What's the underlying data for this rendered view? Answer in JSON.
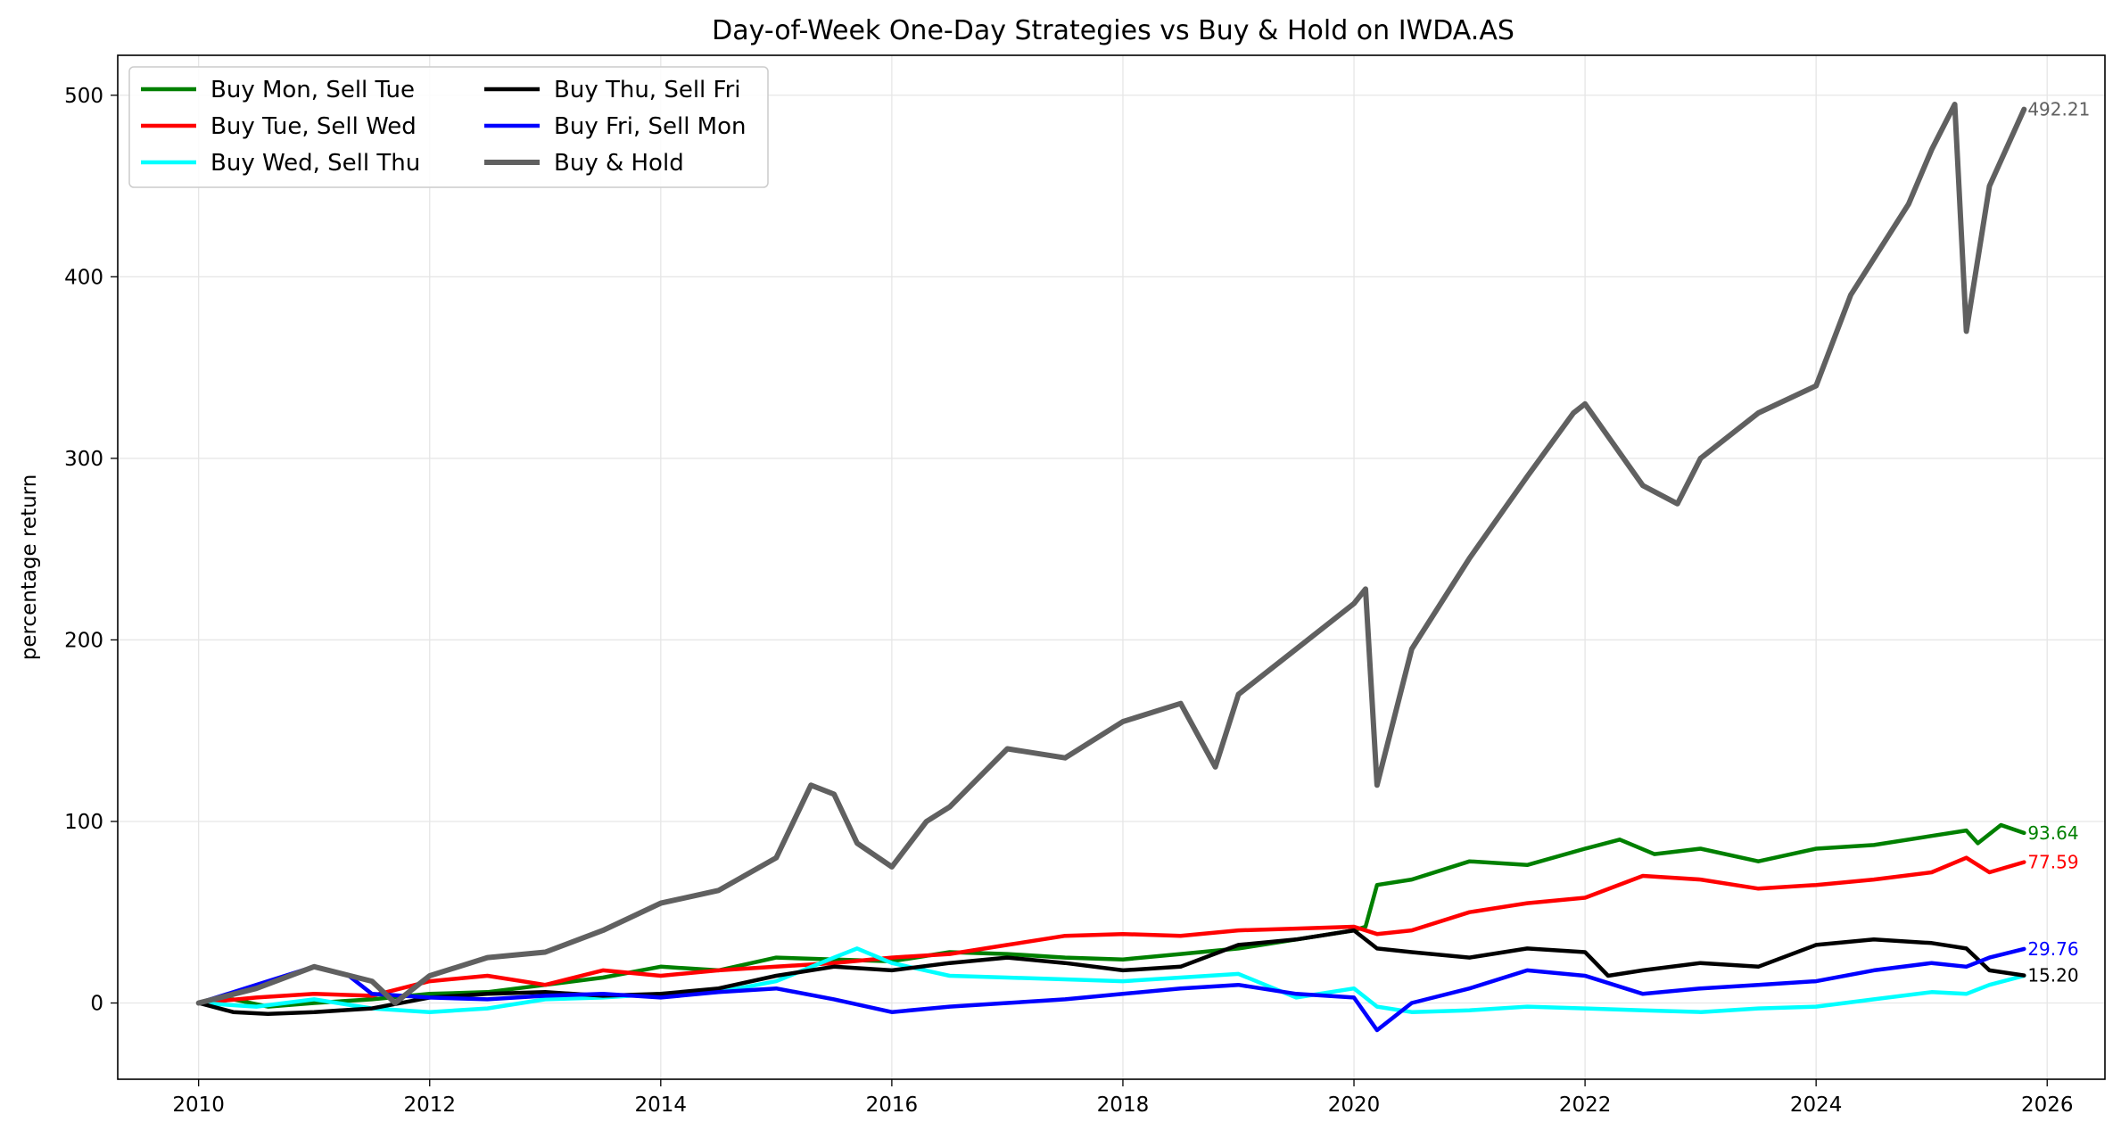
{
  "chart_data": {
    "type": "line",
    "title": "Day-of-Week One-Day Strategies vs Buy & Hold on IWDA.AS",
    "xlabel": "",
    "ylabel": "percentage return",
    "xlim": [
      2009.3,
      2026.5
    ],
    "ylim": [
      -42,
      522
    ],
    "x_ticks": [
      2010,
      2012,
      2014,
      2016,
      2018,
      2020,
      2022,
      2024,
      2026
    ],
    "y_ticks": [
      0,
      100,
      200,
      300,
      400,
      500
    ],
    "grid": true,
    "legend_position": "top-left",
    "series": [
      {
        "name": "Buy Mon, Sell Tue",
        "color": "#008000",
        "end_label": "93.64",
        "x": [
          2010.0,
          2010.3,
          2010.6,
          2011.0,
          2011.5,
          2012.0,
          2012.5,
          2013.0,
          2013.5,
          2014.0,
          2014.5,
          2015.0,
          2015.5,
          2016.0,
          2016.5,
          2017.0,
          2017.5,
          2018.0,
          2018.5,
          2019.0,
          2019.5,
          2020.0,
          2020.1,
          2020.2,
          2020.5,
          2021.0,
          2021.5,
          2022.0,
          2022.3,
          2022.6,
          2023.0,
          2023.5,
          2024.0,
          2024.5,
          2025.0,
          2025.3,
          2025.4,
          2025.6,
          2025.8
        ],
        "values": [
          0,
          2,
          -2,
          0,
          2,
          5,
          6,
          10,
          14,
          20,
          18,
          25,
          24,
          23,
          28,
          27,
          25,
          24,
          27,
          30,
          35,
          40,
          42,
          65,
          68,
          78,
          76,
          85,
          90,
          82,
          85,
          78,
          85,
          87,
          92,
          95,
          88,
          98,
          93.64
        ]
      },
      {
        "name": "Buy Tue, Sell Wed",
        "color": "#ff0000",
        "end_label": "77.59",
        "x": [
          2010.0,
          2010.5,
          2011.0,
          2011.5,
          2012.0,
          2012.5,
          2013.0,
          2013.5,
          2014.0,
          2014.5,
          2015.0,
          2015.5,
          2016.0,
          2016.5,
          2017.0,
          2017.5,
          2018.0,
          2018.5,
          2019.0,
          2019.5,
          2020.0,
          2020.2,
          2020.5,
          2021.0,
          2021.5,
          2022.0,
          2022.5,
          2023.0,
          2023.5,
          2024.0,
          2024.5,
          2025.0,
          2025.3,
          2025.5,
          2025.8
        ],
        "values": [
          0,
          3,
          5,
          4,
          12,
          15,
          10,
          18,
          15,
          18,
          20,
          22,
          25,
          27,
          32,
          37,
          38,
          37,
          40,
          41,
          42,
          38,
          40,
          50,
          55,
          58,
          70,
          68,
          63,
          65,
          68,
          72,
          80,
          72,
          77.59
        ]
      },
      {
        "name": "Buy Wed, Sell Thu",
        "color": "#00ffff",
        "end_label": "",
        "x": [
          2010.0,
          2010.5,
          2011.0,
          2011.5,
          2012.0,
          2012.5,
          2013.0,
          2013.5,
          2014.0,
          2014.5,
          2015.0,
          2015.5,
          2015.7,
          2016.0,
          2016.5,
          2017.0,
          2017.5,
          2018.0,
          2018.5,
          2019.0,
          2019.5,
          2020.0,
          2020.2,
          2020.5,
          2021.0,
          2021.5,
          2022.0,
          2022.5,
          2023.0,
          2023.5,
          2024.0,
          2024.5,
          2025.0,
          2025.3,
          2025.5,
          2025.8
        ],
        "values": [
          0,
          -2,
          2,
          -3,
          -5,
          -3,
          2,
          3,
          5,
          6,
          12,
          25,
          30,
          22,
          15,
          14,
          13,
          12,
          14,
          16,
          3,
          8,
          -2,
          -5,
          -4,
          -2,
          -3,
          -4,
          -5,
          -3,
          -2,
          2,
          6,
          5,
          10,
          15
        ]
      },
      {
        "name": "Buy Thu, Sell Fri",
        "color": "#000000",
        "end_label": "15.20",
        "x": [
          2010.0,
          2010.3,
          2010.6,
          2011.0,
          2011.5,
          2012.0,
          2012.5,
          2013.0,
          2013.5,
          2014.0,
          2014.5,
          2015.0,
          2015.5,
          2016.0,
          2016.5,
          2017.0,
          2017.5,
          2018.0,
          2018.5,
          2019.0,
          2019.5,
          2020.0,
          2020.2,
          2020.5,
          2021.0,
          2021.5,
          2022.0,
          2022.2,
          2022.5,
          2023.0,
          2023.5,
          2024.0,
          2024.5,
          2025.0,
          2025.3,
          2025.5,
          2025.8
        ],
        "values": [
          0,
          -5,
          -6,
          -5,
          -3,
          3,
          5,
          6,
          4,
          5,
          8,
          15,
          20,
          18,
          22,
          25,
          22,
          18,
          20,
          32,
          35,
          40,
          30,
          28,
          25,
          30,
          28,
          15,
          18,
          22,
          20,
          32,
          35,
          33,
          30,
          18,
          15.2
        ]
      },
      {
        "name": "Buy Fri, Sell Mon",
        "color": "#0000ff",
        "end_label": "29.76",
        "x": [
          2010.0,
          2010.5,
          2011.0,
          2011.3,
          2011.5,
          2012.0,
          2012.5,
          2013.0,
          2013.5,
          2014.0,
          2014.5,
          2015.0,
          2015.5,
          2016.0,
          2016.5,
          2017.0,
          2017.5,
          2018.0,
          2018.5,
          2019.0,
          2019.5,
          2020.0,
          2020.2,
          2020.5,
          2021.0,
          2021.5,
          2022.0,
          2022.5,
          2023.0,
          2023.5,
          2024.0,
          2024.5,
          2025.0,
          2025.3,
          2025.5,
          2025.8
        ],
        "values": [
          0,
          10,
          20,
          15,
          5,
          3,
          2,
          4,
          5,
          3,
          6,
          8,
          2,
          -5,
          -2,
          0,
          2,
          5,
          8,
          10,
          5,
          3,
          -15,
          0,
          8,
          18,
          15,
          5,
          8,
          10,
          12,
          18,
          22,
          20,
          25,
          29.76
        ]
      },
      {
        "name": "Buy & Hold",
        "color": "#606060",
        "end_label": "492.21",
        "x": [
          2010.0,
          2010.5,
          2011.0,
          2011.5,
          2011.7,
          2012.0,
          2012.5,
          2013.0,
          2013.5,
          2014.0,
          2014.5,
          2015.0,
          2015.3,
          2015.5,
          2015.7,
          2016.0,
          2016.3,
          2016.5,
          2017.0,
          2017.5,
          2018.0,
          2018.5,
          2018.8,
          2019.0,
          2019.5,
          2020.0,
          2020.1,
          2020.2,
          2020.5,
          2021.0,
          2021.5,
          2021.9,
          2022.0,
          2022.5,
          2022.8,
          2023.0,
          2023.5,
          2024.0,
          2024.3,
          2024.5,
          2024.8,
          2025.0,
          2025.2,
          2025.3,
          2025.5,
          2025.8
        ],
        "values": [
          0,
          8,
          20,
          12,
          0,
          15,
          25,
          28,
          40,
          55,
          62,
          80,
          120,
          115,
          88,
          75,
          100,
          108,
          140,
          135,
          155,
          165,
          130,
          170,
          195,
          220,
          228,
          120,
          195,
          245,
          290,
          325,
          330,
          285,
          275,
          300,
          325,
          340,
          390,
          410,
          440,
          470,
          495,
          370,
          450,
          492.21
        ]
      }
    ]
  }
}
